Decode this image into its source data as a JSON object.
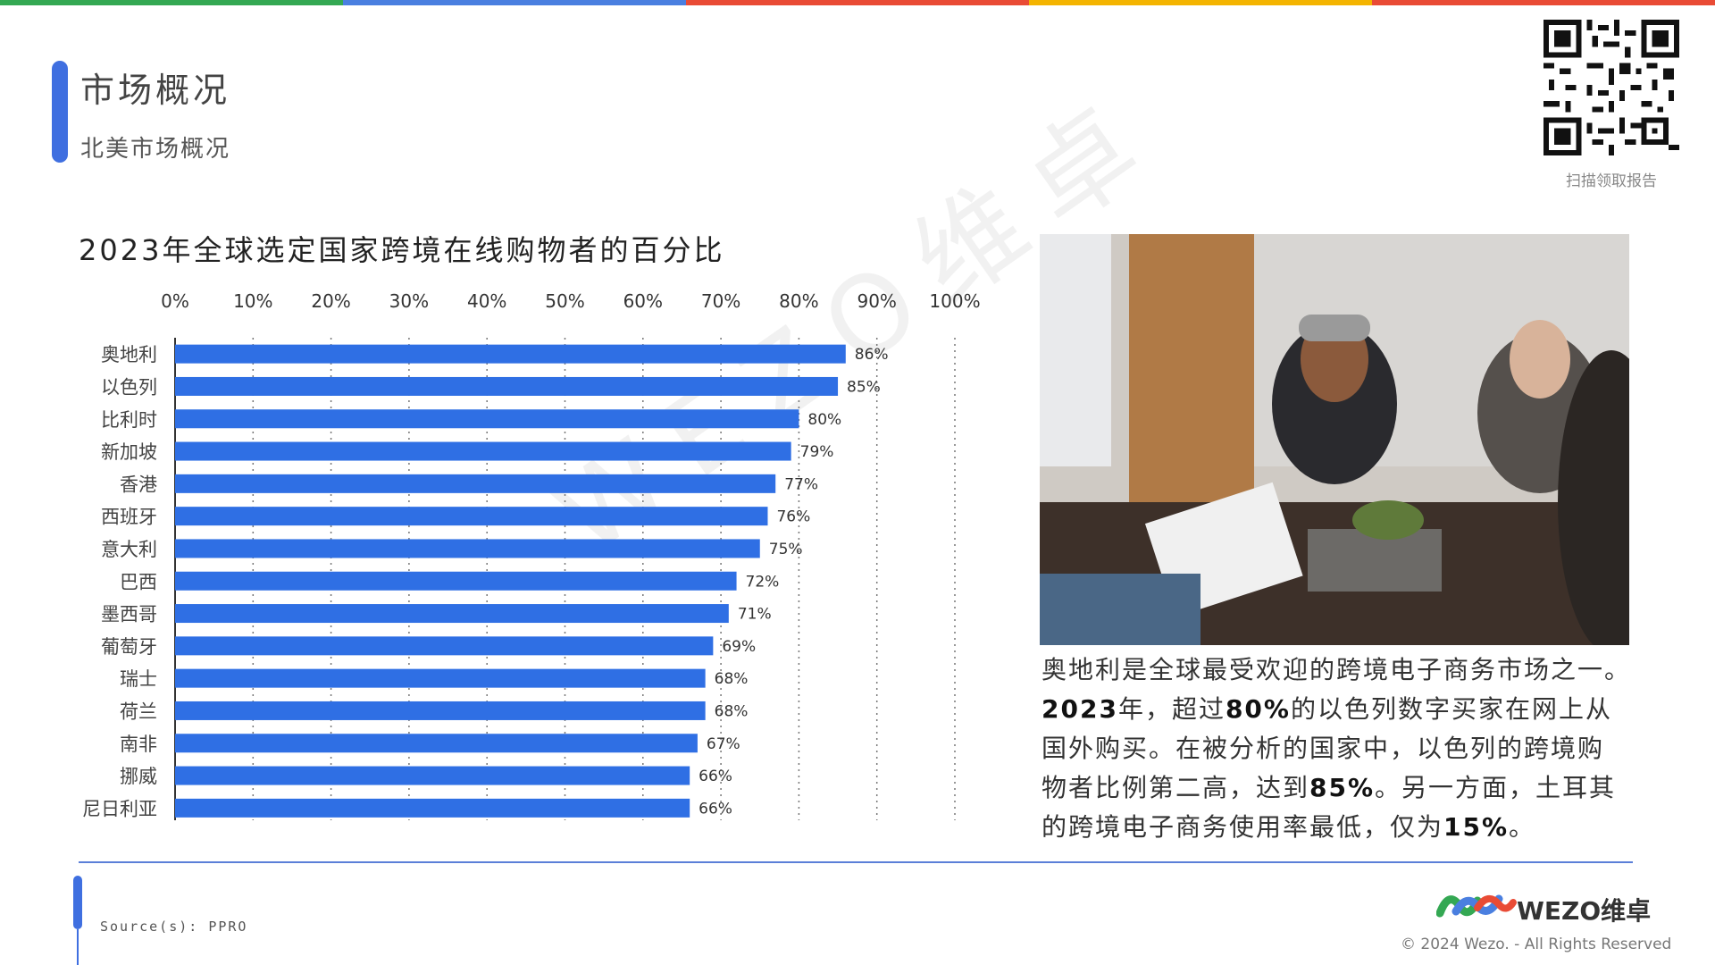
{
  "colors": {
    "topbar": [
      "#34a853",
      "#4a7fe0",
      "#e94b35",
      "#f4b400",
      "#e94b35"
    ],
    "bar": "#2f6fe4",
    "accent": "#3f6fe0"
  },
  "header": {
    "title": "市场概况",
    "subtitle": "北美市场概况"
  },
  "qr": {
    "label": "扫描领取报告"
  },
  "chart_title": "2023年全球选定国家跨境在线购物者的百分比",
  "chart_data": {
    "type": "bar",
    "orientation": "horizontal",
    "title": "2023年全球选定国家跨境在线购物者的百分比",
    "categories": [
      "奥地利",
      "以色列",
      "比利时",
      "新加坡",
      "香港",
      "西班牙",
      "意大利",
      "巴西",
      "墨西哥",
      "葡萄牙",
      "瑞士",
      "荷兰",
      "南非",
      "挪威",
      "尼日利亚"
    ],
    "values": [
      86,
      85,
      80,
      79,
      77,
      76,
      75,
      72,
      71,
      69,
      68,
      68,
      67,
      66,
      66
    ],
    "data_labels": [
      "86%",
      "85%",
      "80%",
      "79%",
      "77%",
      "76%",
      "75%",
      "72%",
      "71%",
      "69%",
      "68%",
      "68%",
      "67%",
      "66%",
      "66%"
    ],
    "x_ticks": [
      "0%",
      "10%",
      "20%",
      "30%",
      "40%",
      "50%",
      "60%",
      "70%",
      "80%",
      "90%",
      "100%"
    ],
    "xlim": [
      0,
      100
    ],
    "grid": "vertical-dotted",
    "axis_position": "top"
  },
  "watermark": "WEZO维卓",
  "description": {
    "line1": "奥地利是全球最受欢迎的跨境电子商务市场之一。",
    "l2a": "2023",
    "l2b": "年，超过",
    "l2c": "80%",
    "l2d": "的以色列数字买家在网上从",
    "line3": "国外购买。在被分析的国家中，以色列的跨境购",
    "l4a": "物者比例第二高，达到",
    "l4b": "85%",
    "l4c": "。另一方面，土耳其",
    "l5a": "的跨境电子商务使用率最低，仅为",
    "l5b": "15%",
    "l5c": "。"
  },
  "footer": {
    "source": "Source(s): PPRO",
    "logo_text": "WEZO维卓",
    "copyright": "© 2024 Wezo. - All Rights Reserved"
  }
}
